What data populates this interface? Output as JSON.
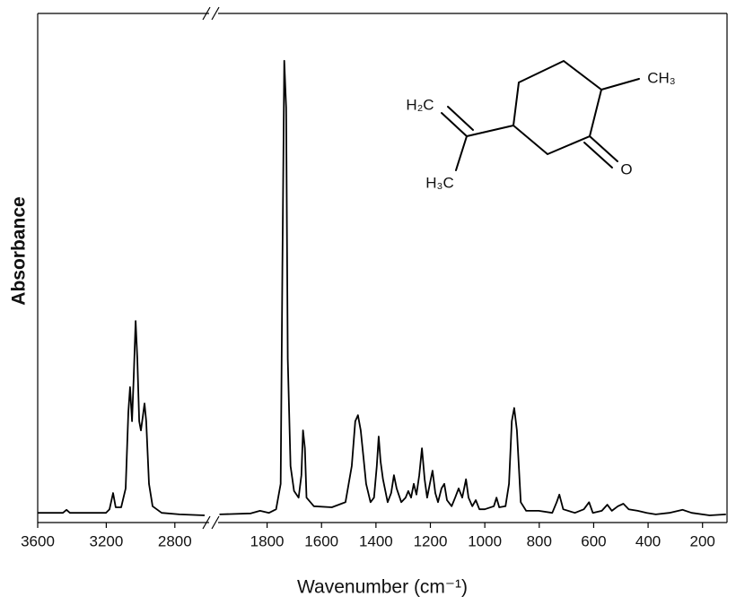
{
  "chart_data": [
    {
      "type": "line",
      "y_label": "Absorbance",
      "xlim": [
        3600,
        2600
      ],
      "ylim": [
        0,
        1
      ],
      "xticks": [
        3600,
        3200,
        2800
      ],
      "series": [
        {
          "color": "#000000",
          "x": [
            3600,
            3453,
            3432,
            3412,
            3202,
            3181,
            3160,
            3145,
            3113,
            3087,
            3071,
            3061,
            3050,
            3040,
            3029,
            3019,
            3008,
            2998,
            2987,
            2977,
            2967,
            2951,
            2930,
            2877,
            2773,
            2626
          ],
          "values": [
            0.019,
            0.019,
            0.025,
            0.019,
            0.019,
            0.026,
            0.058,
            0.03,
            0.03,
            0.067,
            0.217,
            0.266,
            0.199,
            0.287,
            0.396,
            0.322,
            0.199,
            0.181,
            0.208,
            0.234,
            0.199,
            0.076,
            0.032,
            0.019,
            0.016,
            0.014
          ]
        }
      ]
    },
    {
      "type": "line",
      "x_label": "Wavenumber (cm⁻¹)",
      "xlim": [
        1980,
        110
      ],
      "ylim": [
        0,
        1
      ],
      "xticks": [
        1800,
        1600,
        1400,
        1200,
        1000,
        800,
        600,
        400,
        200
      ],
      "annotations": [
        "H₂C",
        "CH₃",
        "H₃C",
        "O"
      ],
      "series": [
        {
          "color": "#000000",
          "x": [
            1975,
            1860,
            1826,
            1793,
            1767,
            1750,
            1744,
            1737,
            1730,
            1724,
            1714,
            1701,
            1684,
            1674,
            1668,
            1661,
            1655,
            1628,
            1562,
            1512,
            1489,
            1476,
            1466,
            1456,
            1446,
            1436,
            1420,
            1407,
            1397,
            1390,
            1383,
            1374,
            1357,
            1344,
            1334,
            1324,
            1307,
            1291,
            1281,
            1271,
            1261,
            1251,
            1241,
            1231,
            1221,
            1212,
            1202,
            1192,
            1182,
            1172,
            1159,
            1149,
            1139,
            1122,
            1109,
            1096,
            1083,
            1069,
            1060,
            1046,
            1033,
            1020,
            1000,
            967,
            957,
            947,
            924,
            911,
            901,
            892,
            882,
            868,
            848,
            802,
            752,
            736,
            726,
            712,
            669,
            636,
            617,
            603,
            570,
            550,
            533,
            511,
            491,
            471,
            438,
            405,
            372,
            322,
            273,
            240,
            174,
            114
          ],
          "values": [
            0.016,
            0.018,
            0.023,
            0.019,
            0.026,
            0.076,
            0.498,
            0.907,
            0.815,
            0.322,
            0.111,
            0.062,
            0.049,
            0.093,
            0.181,
            0.146,
            0.049,
            0.032,
            0.03,
            0.04,
            0.111,
            0.199,
            0.211,
            0.181,
            0.129,
            0.076,
            0.04,
            0.049,
            0.111,
            0.169,
            0.12,
            0.085,
            0.04,
            0.058,
            0.093,
            0.067,
            0.04,
            0.049,
            0.062,
            0.049,
            0.076,
            0.055,
            0.093,
            0.146,
            0.085,
            0.049,
            0.076,
            0.102,
            0.058,
            0.04,
            0.067,
            0.076,
            0.044,
            0.032,
            0.049,
            0.067,
            0.049,
            0.085,
            0.049,
            0.032,
            0.044,
            0.026,
            0.026,
            0.032,
            0.049,
            0.03,
            0.032,
            0.076,
            0.199,
            0.225,
            0.181,
            0.04,
            0.023,
            0.023,
            0.019,
            0.04,
            0.055,
            0.026,
            0.019,
            0.026,
            0.04,
            0.019,
            0.023,
            0.035,
            0.023,
            0.032,
            0.037,
            0.026,
            0.023,
            0.019,
            0.016,
            0.019,
            0.025,
            0.019,
            0.014,
            0.016
          ]
        }
      ]
    }
  ]
}
